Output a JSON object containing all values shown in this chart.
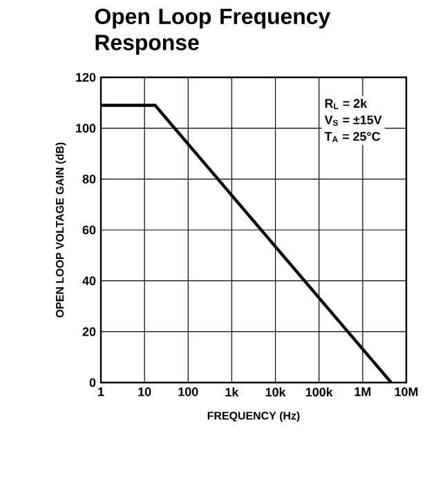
{
  "chart_data": {
    "type": "line",
    "title": "Open Loop Frequency Response",
    "xlabel": "FREQUENCY (Hz)",
    "ylabel": "OPEN LOOP VOLTAGE GAIN (dB)",
    "annotations": [
      "R$_{L}$ = 2k",
      "V$_{S}$ = ±15V",
      "T$_{A}$ = 25°C"
    ],
    "series": [
      {
        "color": "#000000",
        "x": [
          1,
          17.5,
          4500000
        ],
        "values": [
          109,
          109,
          0
        ]
      }
    ],
    "log": "x",
    "xlim": [
      1,
      10000000
    ],
    "ylim": [
      0,
      120
    ],
    "xticks": [
      1,
      10,
      100,
      {
        "value": 1000,
        "label": "1k"
      },
      {
        "value": 10000,
        "label": "10k"
      },
      {
        "value": 100000,
        "label": "100k"
      },
      {
        "value": 1000000,
        "label": "1M"
      },
      {
        "value": 10000000,
        "label": "10M"
      }
    ],
    "yticks": [
      0,
      20,
      40,
      60,
      80,
      100,
      120
    ],
    "grid": true,
    "marker": "none",
    "line_style": "solid"
  }
}
